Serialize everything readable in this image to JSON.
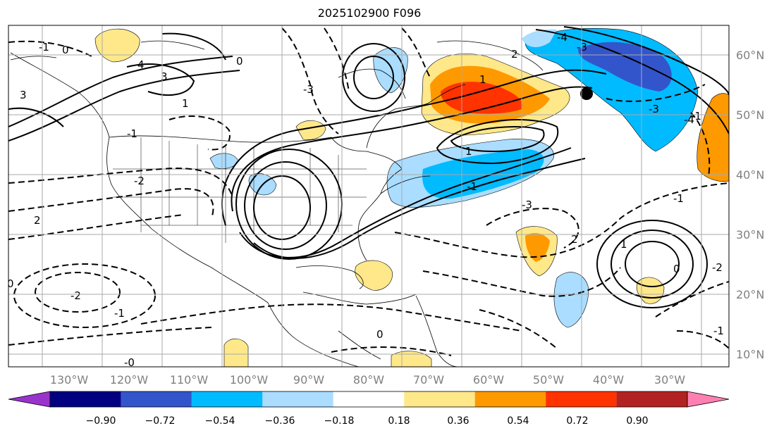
{
  "title": "2025102900 F096",
  "lon_labels": [
    "130°W",
    "120°W",
    "110°W",
    "100°W",
    "90°W",
    "80°W",
    "70°W",
    "60°W",
    "50°W",
    "40°W",
    "30°W"
  ],
  "lat_labels": [
    "10°N",
    "20°N",
    "30°N",
    "40°N",
    "50°N",
    "60°N"
  ],
  "colorbar": {
    "tick_labels": [
      "−0.90",
      "−0.72",
      "−0.54",
      "−0.36",
      "−0.18",
      "0.18",
      "0.36",
      "0.54",
      "0.72",
      "0.90"
    ],
    "colors": [
      "#9933cc",
      "#000080",
      "#3355cc",
      "#00bbff",
      "#aaddff",
      "#ffffff",
      "#ffe88a",
      "#ff9900",
      "#ff3300",
      "#b22222",
      "#ff80b0"
    ]
  },
  "contour_labels": [
    "-1",
    "0",
    "4",
    "3",
    "3",
    "1",
    "-1",
    "-2",
    "-2",
    "-1",
    "0",
    "-3",
    "-4",
    "-3",
    "2",
    "1",
    "-1",
    "2",
    "1",
    "-3",
    "-1",
    "0",
    "-2",
    "-1",
    "2",
    "0",
    "-0",
    "-1",
    "-3",
    "-4",
    "1",
    "0"
  ],
  "colors": {
    "frame": "#000000",
    "grid": "#aaaaaa",
    "axis_text": "#808080"
  }
}
